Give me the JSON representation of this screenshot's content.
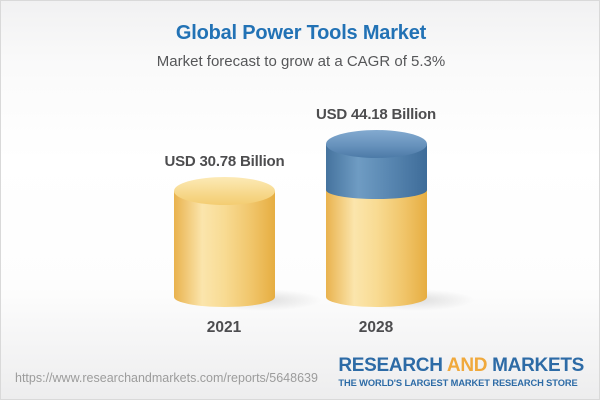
{
  "header": {
    "title": "Global Power Tools Market",
    "subtitle": "Market forecast to grow at a CAGR of 5.3%"
  },
  "chart_data": {
    "type": "bar",
    "variant": "3d-cylinder-infographic",
    "title": "Global Power Tools Market",
    "subtitle": "Market forecast to grow at a CAGR of 5.3%",
    "unit": "USD Billion",
    "cagr": "5.3%",
    "categories": [
      "2021",
      "2028"
    ],
    "values": [
      30.78,
      44.18
    ],
    "value_labels": [
      "USD 30.78 Billion",
      "USD 44.18 Billion"
    ],
    "segments": {
      "2021": {
        "baseline": 30.78,
        "growth": 0
      },
      "2028": {
        "baseline": 30.78,
        "growth": 13.4
      }
    },
    "legend": "none",
    "axes": "none",
    "colors": {
      "baseline_cylinder": "#f6d584",
      "growth_cylinder": "#5c8ab4",
      "label_text": "#4d4d4f"
    }
  },
  "footer": {
    "url": "https://www.researchandmarkets.com/reports/5648639",
    "logo": {
      "research": "RESEARCH",
      "and": "AND",
      "markets": "MARKETS",
      "tagline": "THE WORLD'S LARGEST MARKET RESEARCH STORE"
    }
  },
  "colors": {
    "title_blue": "#2272b5",
    "subtitle_gray": "#565759",
    "label_gray": "#4d4d4f",
    "url_gray": "#9c9c9c",
    "logo_blue": "#2d6ba6",
    "logo_gold": "#f0a93c",
    "border_gray": "#d9d9d9"
  }
}
